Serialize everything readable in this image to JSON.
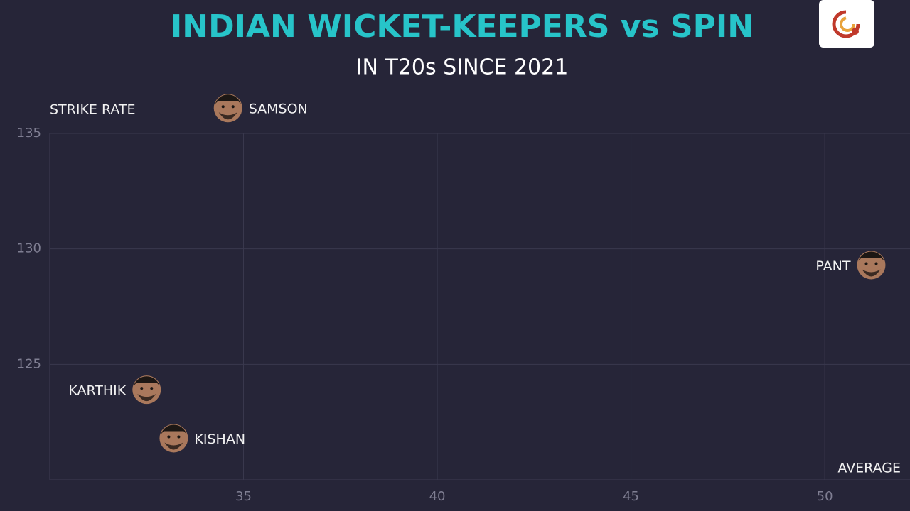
{
  "chart_data": {
    "type": "scatter",
    "title": "INDIAN WICKET-KEEPERS vs SPIN",
    "subtitle": "IN T20s SINCE 2021",
    "y_label": "STRIKE RATE",
    "x_label": "AVERAGE",
    "labels": [
      "SAMSON",
      "PANT",
      "KARTHIK",
      "KISHAN"
    ],
    "x": [
      34.6,
      51.2,
      32.5,
      33.2
    ],
    "values": [
      136.1,
      129.3,
      123.9,
      121.8
    ],
    "xlim": [
      30,
      52.2
    ],
    "ylim": [
      120,
      135
    ],
    "xticks": [
      35,
      40,
      45,
      50
    ],
    "yticks": [
      125,
      130,
      135
    ],
    "grid": true
  }
}
